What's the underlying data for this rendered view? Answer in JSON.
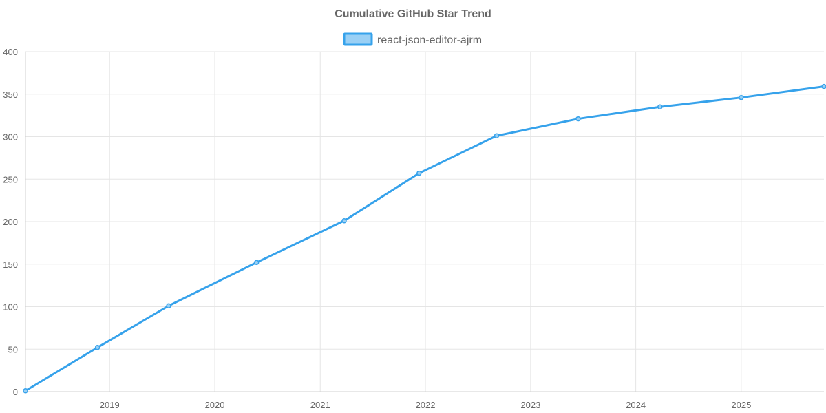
{
  "chart_data": {
    "type": "line",
    "title": "Cumulative GitHub Star Trend",
    "xlabel": "",
    "ylabel": "",
    "x_axis_type": "date",
    "xlim": [
      "2018-03-15",
      "2025-10-15"
    ],
    "ylim": [
      0,
      400
    ],
    "x_ticks": [
      "2019",
      "2020",
      "2021",
      "2022",
      "2023",
      "2024",
      "2025"
    ],
    "y_ticks": [
      0,
      50,
      100,
      150,
      200,
      250,
      300,
      350,
      400
    ],
    "grid": true,
    "legend": {
      "position": "top-center"
    },
    "series": [
      {
        "name": "react-json-editor-ajrm",
        "color": "#36a2eb",
        "fill_color": "#9ad0f5",
        "x": [
          "2018-03-15",
          "2018-11-20",
          "2019-07-25",
          "2020-05-25",
          "2021-03-25",
          "2021-12-10",
          "2022-09-05",
          "2023-06-15",
          "2024-03-25",
          "2025-01-01",
          "2025-10-15"
        ],
        "values": [
          1,
          52,
          101,
          152,
          201,
          257,
          301,
          321,
          335,
          346,
          359
        ]
      }
    ]
  }
}
